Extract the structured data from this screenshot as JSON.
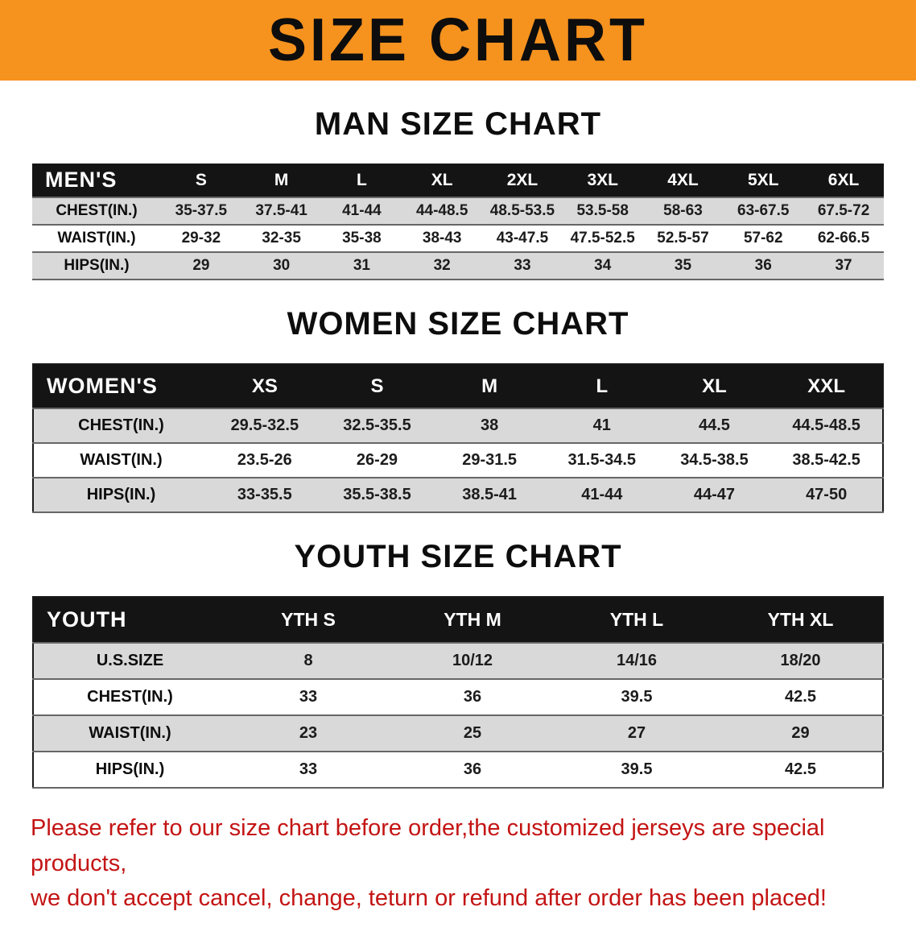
{
  "banner": {
    "title": "SIZE CHART"
  },
  "colors": {
    "banner_bg": "#F6921E",
    "header_bg": "#141414",
    "stripe": "#D9D9D9",
    "row_line": "#666666",
    "disclaimer_red": "#C41414"
  },
  "sections": [
    {
      "id": "men",
      "heading": "MAN SIZE CHART",
      "table": {
        "header": [
          "MEN'S",
          "S",
          "M",
          "L",
          "XL",
          "2XL",
          "3XL",
          "4XL",
          "5XL",
          "6XL"
        ],
        "rows": [
          [
            "CHEST(IN.)",
            "35-37.5",
            "37.5-41",
            "41-44",
            "44-48.5",
            "48.5-53.5",
            "53.5-58",
            "58-63",
            "63-67.5",
            "67.5-72"
          ],
          [
            "WAIST(IN.)",
            "29-32",
            "32-35",
            "35-38",
            "38-43",
            "43-47.5",
            "47.5-52.5",
            "52.5-57",
            "57-62",
            "62-66.5"
          ],
          [
            "HIPS(IN.)",
            "29",
            "30",
            "31",
            "32",
            "33",
            "34",
            "35",
            "36",
            "37"
          ]
        ]
      }
    },
    {
      "id": "women",
      "heading": "WOMEN SIZE CHART",
      "table": {
        "header": [
          "WOMEN'S",
          "XS",
          "S",
          "M",
          "L",
          "XL",
          "XXL"
        ],
        "rows": [
          [
            "CHEST(IN.)",
            "29.5-32.5",
            "32.5-35.5",
            "38",
            "41",
            "44.5",
            "44.5-48.5"
          ],
          [
            "WAIST(IN.)",
            "23.5-26",
            "26-29",
            "29-31.5",
            "31.5-34.5",
            "34.5-38.5",
            "38.5-42.5"
          ],
          [
            "HIPS(IN.)",
            "33-35.5",
            "35.5-38.5",
            "38.5-41",
            "41-44",
            "44-47",
            "47-50"
          ]
        ]
      }
    },
    {
      "id": "youth",
      "heading": "YOUTH SIZE CHART",
      "table": {
        "header": [
          "YOUTH",
          "YTH S",
          "YTH M",
          "YTH L",
          "YTH XL"
        ],
        "rows": [
          [
            "U.S.SIZE",
            "8",
            "10/12",
            "14/16",
            "18/20"
          ],
          [
            "CHEST(IN.)",
            "33",
            "36",
            "39.5",
            "42.5"
          ],
          [
            "WAIST(IN.)",
            "23",
            "25",
            "27",
            "29"
          ],
          [
            "HIPS(IN.)",
            "33",
            "36",
            "39.5",
            "42.5"
          ]
        ]
      }
    }
  ],
  "disclaimer": {
    "line1": "Please refer to our size chart before order,the customized jerseys are special products,",
    "line2": "we don't accept cancel, change, teturn or refund after order has been placed!"
  }
}
